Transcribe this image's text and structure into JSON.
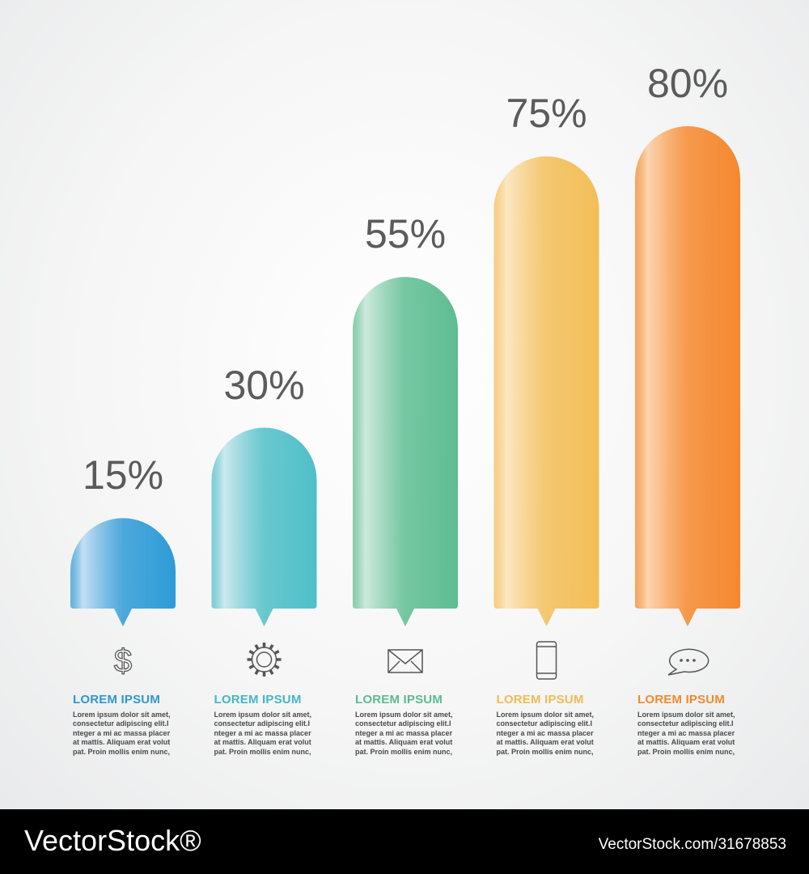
{
  "chart_data": {
    "type": "bar",
    "ylim": [
      0,
      100
    ],
    "values": [
      15,
      30,
      55,
      75,
      80
    ],
    "value_labels": [
      "15%",
      "30%",
      "55%",
      "75%",
      "80%"
    ],
    "items": [
      {
        "value": 15,
        "label": "15%",
        "icon": "dollar-icon",
        "color_dark": "#2e9bd6",
        "color_light": "#c5dff3",
        "title": "LOREM IPSUM",
        "title_color": "#2f98d0",
        "text": "Lorem ipsum dolor sit amet,\nconsectetur adipiscing elit.I\nnteger a mi ac massa placer\nat mattis. Aliquam erat volut\npat. Proin mollis enim nunc,"
      },
      {
        "value": 30,
        "label": "30%",
        "icon": "gear-icon",
        "color_dark": "#4fbfc8",
        "color_light": "#cce9ee",
        "title": "LOREM IPSUM",
        "title_color": "#45b6c6",
        "text": "Lorem ipsum dolor sit amet,\nconsectetur adipiscing elit.I\nnteger a mi ac massa placer\nat mattis. Aliquam erat volut\npat. Proin mollis enim nunc,"
      },
      {
        "value": 55,
        "label": "55%",
        "icon": "envelope-icon",
        "color_dark": "#5ebd92",
        "color_light": "#cdeadc",
        "title": "LOREM IPSUM",
        "title_color": "#5cbb92",
        "text": "Lorem ipsum dolor sit amet,\nconsectetur adipiscing elit.I\nnteger a mi ac massa placer\nat mattis. Aliquam erat volut\npat. Proin mollis enim nunc,"
      },
      {
        "value": 75,
        "label": "75%",
        "icon": "smartphone-icon",
        "color_dark": "#f3be58",
        "color_light": "#fbe7c2",
        "title": "LOREM IPSUM",
        "title_color": "#f1bb55",
        "text": "Lorem ipsum dolor sit amet,\nconsectetur adipiscing elit.I\nnteger a mi ac massa placer\nat mattis. Aliquam erat volut\npat. Proin mollis enim nunc,"
      },
      {
        "value": 80,
        "label": "80%",
        "icon": "chat-bubble-icon",
        "color_dark": "#f5882e",
        "color_light": "#fcd5b1",
        "title": "LOREM IPSUM",
        "title_color": "#f18a2e",
        "text": "Lorem ipsum dolor sit amet,\nconsectetur adipiscing elit.I\nnteger a mi ac massa placer\nat mattis. Aliquam erat volut\npat. Proin mollis enim nunc,"
      }
    ]
  },
  "footer": {
    "logo_text": "VectorStock®",
    "image_id": "VectorStock.com/31678853"
  }
}
